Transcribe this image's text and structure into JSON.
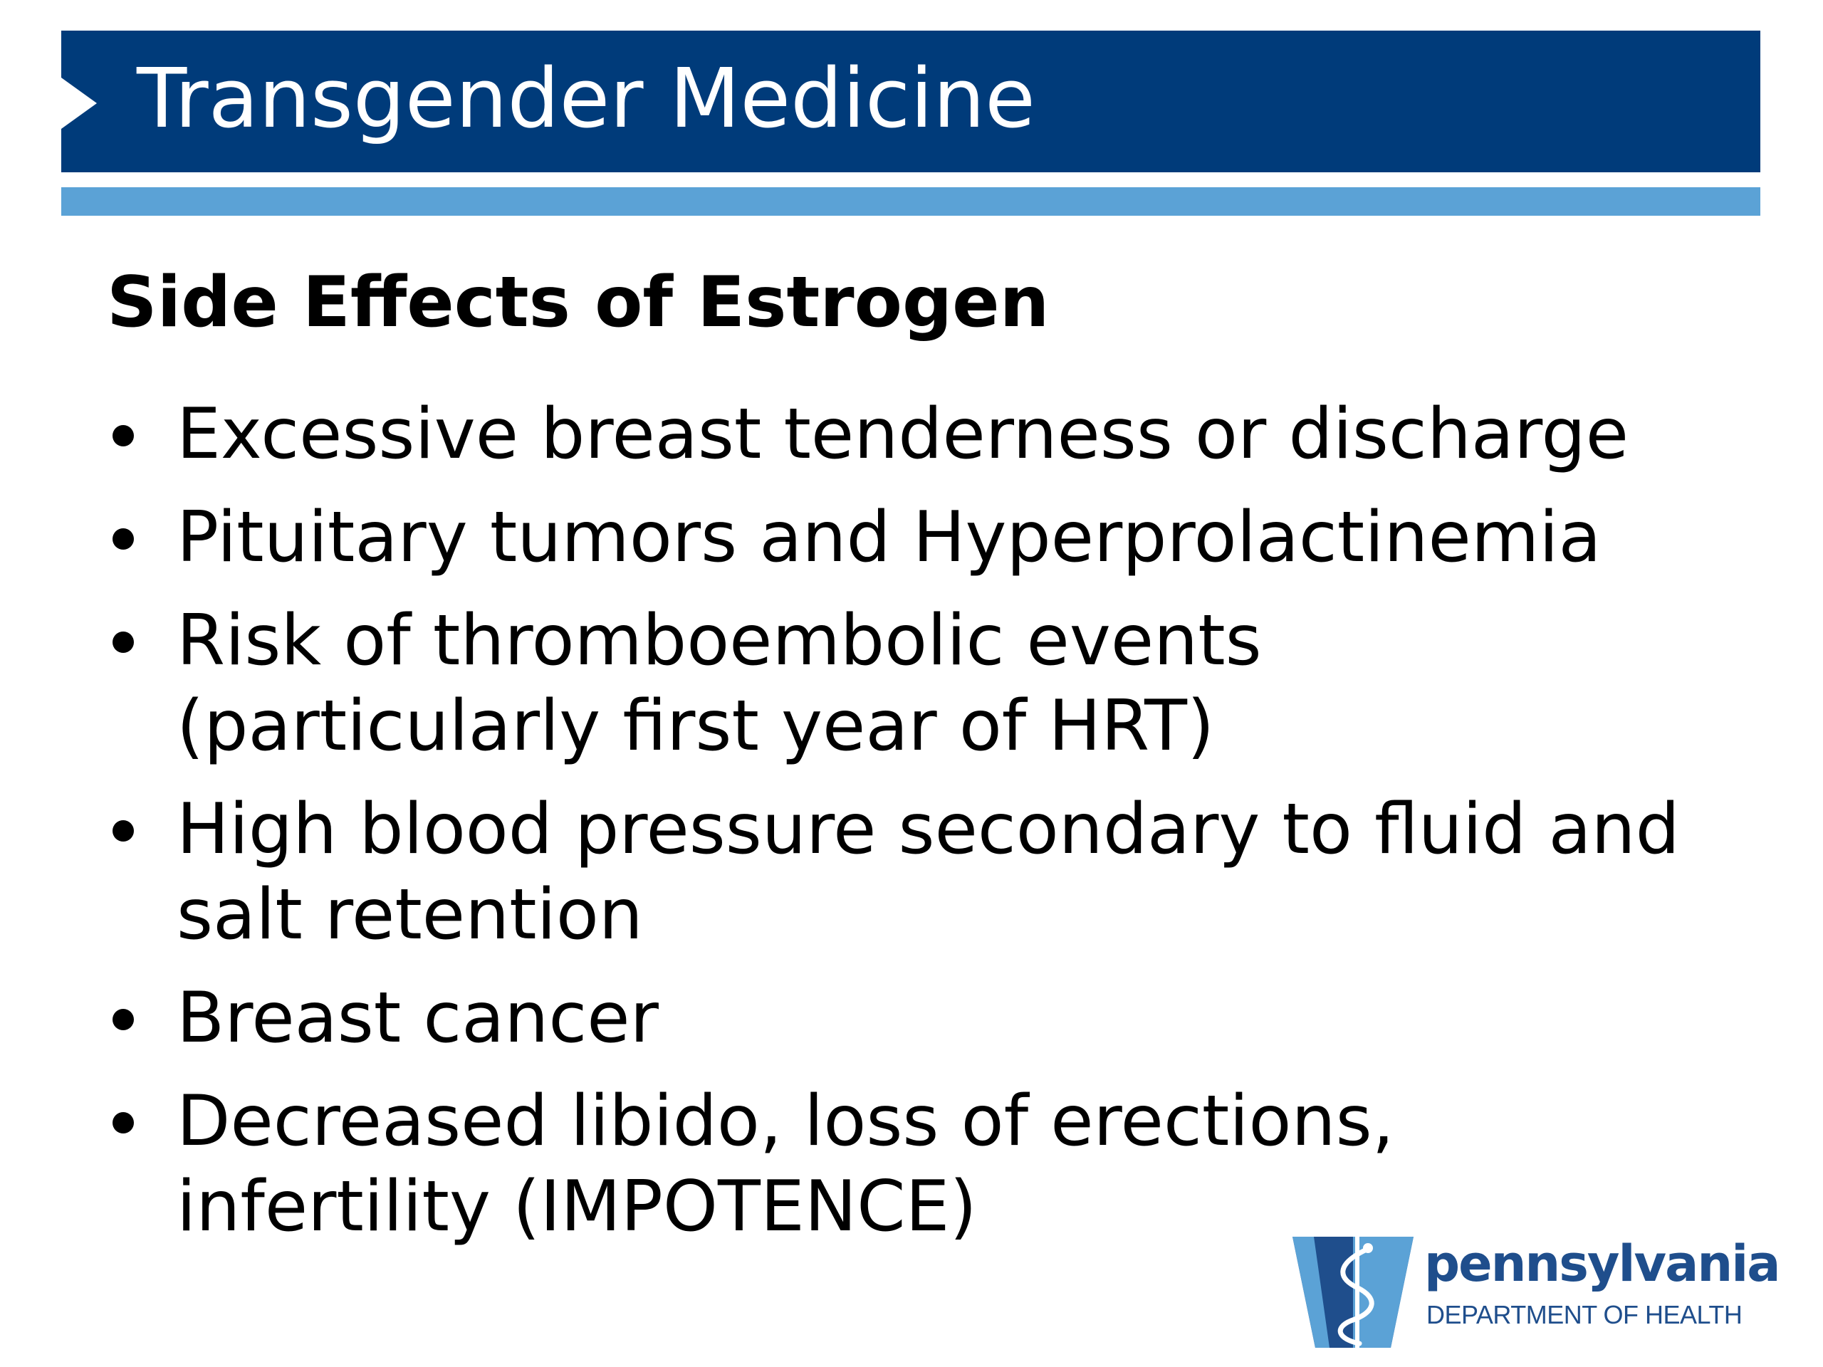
{
  "header": {
    "title": "Transgender Medicine"
  },
  "content": {
    "heading": "Side Effects of Estrogen",
    "bullets": [
      {
        "lines": [
          "Excessive breast tenderness or discharge"
        ]
      },
      {
        "lines": [
          "Pituitary tumors and Hyperprolactinemia"
        ]
      },
      {
        "lines": [
          "Risk of thromboembolic events",
          "(particularly first year of HRT)"
        ]
      },
      {
        "lines": [
          "High blood pressure secondary to fluid and",
          "salt retention"
        ]
      },
      {
        "lines": [
          "Breast cancer"
        ]
      },
      {
        "lines": [
          "Decreased libido, loss of erections,",
          "infertility (IMPOTENCE)"
        ]
      }
    ]
  },
  "logo": {
    "name": "pennsylvania",
    "subtitle": "DEPARTMENT OF HEALTH",
    "icon": "keystone-caduceus-icon",
    "colors": {
      "dark_blue": "#1f4e8c",
      "light_blue": "#5ba2d6"
    }
  },
  "colors": {
    "title_bar": "#003b7a",
    "accent_bar": "#5ba2d6",
    "title_text": "#ffffff",
    "body_text": "#000000"
  }
}
